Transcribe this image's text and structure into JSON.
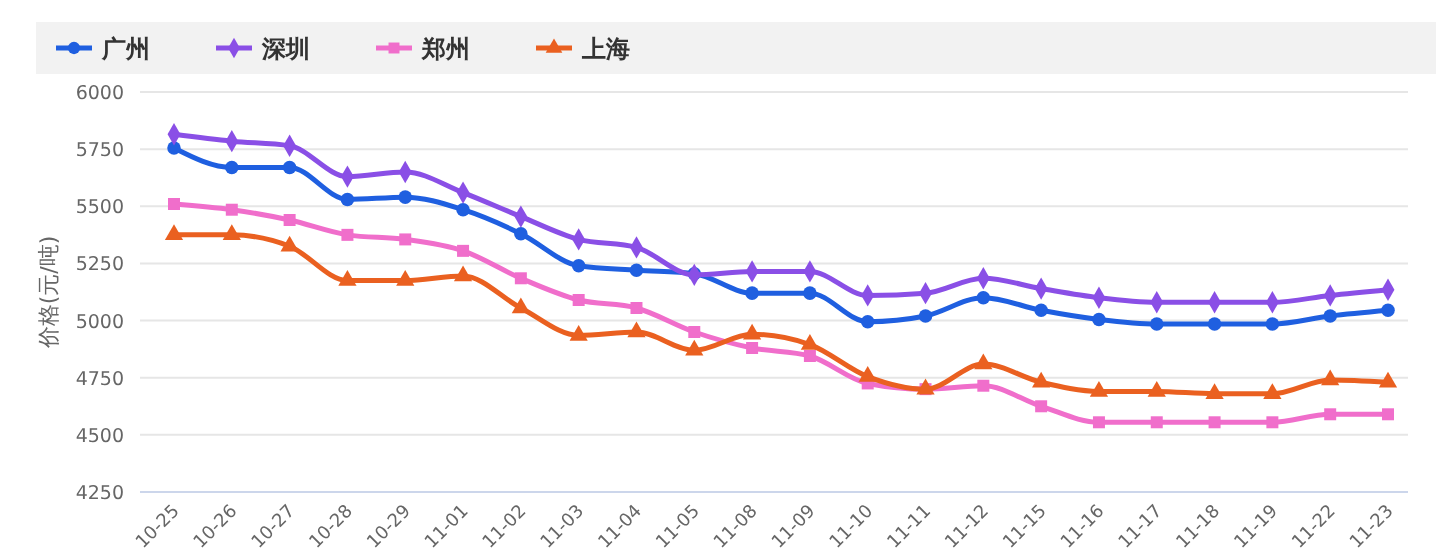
{
  "chart_data": {
    "type": "line",
    "ylabel": "价格(元/吨)",
    "categories": [
      "10-25",
      "10-26",
      "10-27",
      "10-28",
      "10-29",
      "11-01",
      "11-02",
      "11-03",
      "11-04",
      "11-05",
      "11-08",
      "11-09",
      "11-10",
      "11-11",
      "11-12",
      "11-15",
      "11-16",
      "11-17",
      "11-18",
      "11-19",
      "11-22",
      "11-23"
    ],
    "series": [
      {
        "name": "广州",
        "color": "#1f5fe0",
        "marker": "circle",
        "values": [
          5755,
          5670,
          5670,
          5530,
          5540,
          5485,
          5380,
          5240,
          5220,
          5205,
          5120,
          5120,
          4995,
          5020,
          5100,
          5045,
          5005,
          4985,
          4985,
          4985,
          5020,
          5045
        ]
      },
      {
        "name": "深圳",
        "color": "#8a4fe6",
        "marker": "diamond",
        "values": [
          5815,
          5785,
          5765,
          5630,
          5650,
          5560,
          5455,
          5355,
          5320,
          5200,
          5215,
          5215,
          5110,
          5120,
          5185,
          5140,
          5100,
          5080,
          5080,
          5080,
          5110,
          5135
        ]
      },
      {
        "name": "郑州",
        "color": "#f06ecb",
        "marker": "square",
        "values": [
          5510,
          5485,
          5440,
          5375,
          5355,
          5305,
          5185,
          5090,
          5055,
          4950,
          4880,
          4845,
          4725,
          4700,
          4715,
          4625,
          4555,
          4555,
          4555,
          4555,
          4590,
          4590
        ]
      },
      {
        "name": "上海",
        "color": "#ea6020",
        "marker": "triangle",
        "values": [
          5375,
          5375,
          5325,
          5175,
          5175,
          5195,
          5055,
          4935,
          4950,
          4870,
          4940,
          4895,
          4755,
          4700,
          4810,
          4730,
          4690,
          4690,
          4680,
          4680,
          4740,
          4730
        ]
      }
    ],
    "ylim": [
      4250,
      6000
    ],
    "yticks": [
      4250,
      4500,
      4750,
      5000,
      5250,
      5500,
      5750,
      6000
    ],
    "grid": "y",
    "legend": "top"
  }
}
